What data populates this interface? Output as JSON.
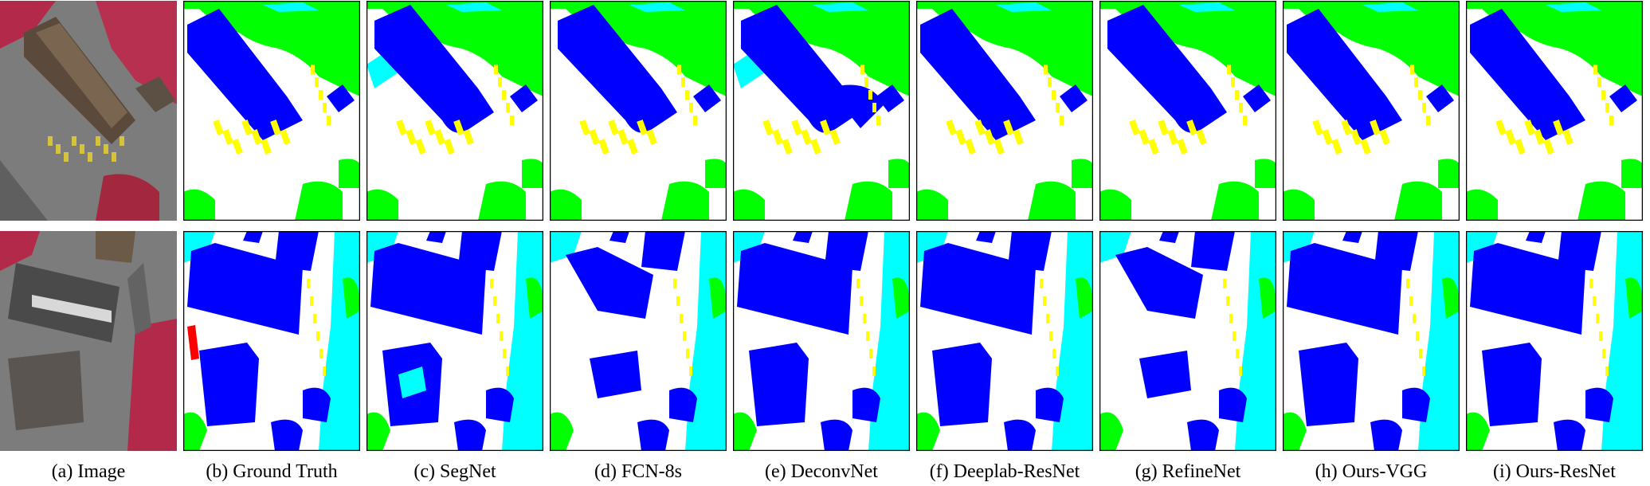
{
  "captions": [
    "(a) Image",
    "(b) Ground Truth",
    "(c) SegNet",
    "(d) FCN-8s",
    "(e) DeconvNet",
    "(f) Deeplab-ResNet",
    "(g) RefineNet",
    "(h) Ours-VGG",
    "(i) Ours-ResNet"
  ],
  "class_colors": {
    "impervious_surface": "#ffffff",
    "building": "#0000ff",
    "low_vegetation": "#00ffff",
    "tree": "#00ff00",
    "car": "#ffff00",
    "clutter": "#ff0000",
    "border": "#000000"
  },
  "row_count": 2
}
